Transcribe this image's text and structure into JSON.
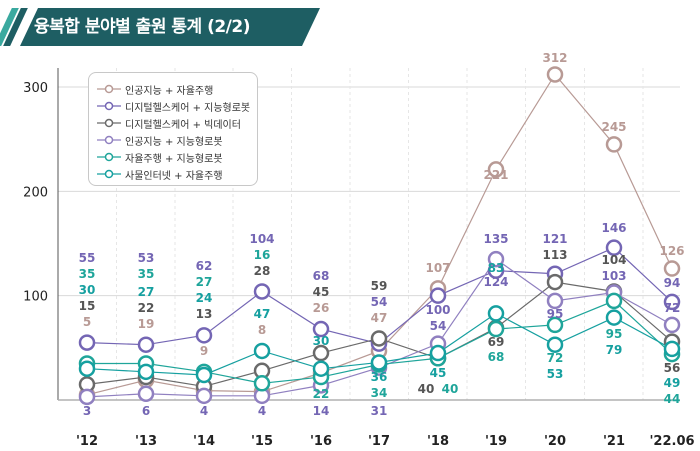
{
  "header": {
    "title": "융복합 분야별 출원 통계 (2/2)",
    "bar_color": "#1e5e63",
    "stripe_colors": [
      "#3aa99f",
      "#1e5e63"
    ]
  },
  "chart_data": {
    "type": "line",
    "title": "융복합 분야별 출원 통계 (2/2)",
    "categories": [
      "'12",
      "'13",
      "'14",
      "'15",
      "'16",
      "'17",
      "'18",
      "'19",
      "'20",
      "'21",
      "'22.06"
    ],
    "ylim": [
      0,
      300
    ],
    "yticks": [
      100,
      200,
      300
    ],
    "grid": true,
    "legend_position": "top-left",
    "series": [
      {
        "name": "인공지능 + 자율주행",
        "color": "#b89a95",
        "values": [
          5,
          19,
          9,
          8,
          26,
          47,
          107,
          221,
          312,
          245,
          126
        ]
      },
      {
        "name": "디지털헬스케어 + 지능형로봇",
        "color": "#7466b4",
        "values": [
          55,
          53,
          62,
          104,
          68,
          54,
          100,
          124,
          121,
          146,
          94
        ]
      },
      {
        "name": "디지털헬스케어 + 빅데이터",
        "color": "#6a6a6a",
        "values": [
          15,
          22,
          13,
          28,
          45,
          59,
          40,
          69,
          113,
          104,
          56
        ]
      },
      {
        "name": "인공지능 + 지능형로봇",
        "color": "#9080c0",
        "values": [
          3,
          6,
          4,
          4,
          14,
          31,
          54,
          135,
          95,
          103,
          72
        ]
      },
      {
        "name": "자율주행 + 지능형로봇",
        "color": "#1fa59a",
        "values": [
          35,
          35,
          27,
          16,
          22,
          34,
          40,
          68,
          72,
          95,
          44
        ]
      },
      {
        "name": "사물인터넷 + 자율주행",
        "color": "#16a0a0",
        "values": [
          30,
          27,
          24,
          47,
          30,
          36,
          45,
          83,
          53,
          79,
          49
        ]
      }
    ]
  }
}
